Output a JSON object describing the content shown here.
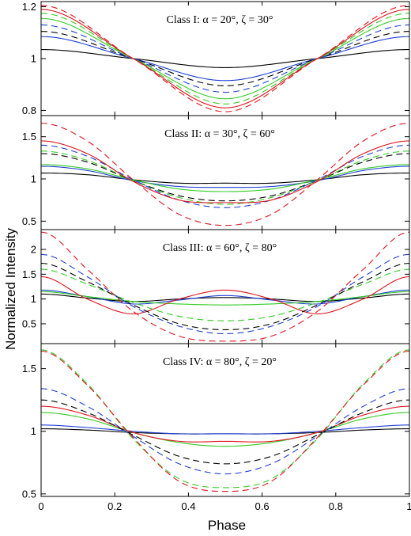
{
  "figure": {
    "xlabel": "Phase",
    "ylabel": "Normalized Intensity"
  },
  "chart_data": [
    {
      "type": "line",
      "title": "Class I: α = 20°, ζ = 30°",
      "xlim": [
        0,
        1
      ],
      "ylim": [
        0.78,
        1.22
      ],
      "xticks": [
        "0",
        "0.2",
        "0.4",
        "0.6",
        "0.8",
        "1"
      ],
      "yticks": [
        "0.8",
        "1",
        "1.2"
      ],
      "series": [
        {
          "color": "#000000",
          "dash": "solid",
          "x": [
            0,
            0.25,
            0.5,
            0.75,
            1
          ],
          "y": [
            1.035,
            1.0,
            0.965,
            1.0,
            1.035
          ]
        },
        {
          "color": "#1f3fd6",
          "dash": "solid",
          "x": [
            0,
            0.25,
            0.5,
            0.75,
            1
          ],
          "y": [
            1.085,
            1.0,
            0.915,
            1.0,
            1.085
          ]
        },
        {
          "color": "#000000",
          "dash": "dashed",
          "x": [
            0,
            0.25,
            0.5,
            0.75,
            1
          ],
          "y": [
            1.105,
            1.0,
            0.895,
            1.0,
            1.105
          ]
        },
        {
          "color": "#1f3fd6",
          "dash": "dashed",
          "x": [
            0,
            0.25,
            0.5,
            0.75,
            1
          ],
          "y": [
            1.13,
            1.0,
            0.87,
            1.0,
            1.13
          ]
        },
        {
          "color": "#33cc22",
          "dash": "solid",
          "x": [
            0,
            0.25,
            0.5,
            0.75,
            1
          ],
          "y": [
            1.155,
            1.0,
            0.845,
            1.0,
            1.155
          ]
        },
        {
          "color": "#33cc22",
          "dash": "dashed",
          "x": [
            0,
            0.25,
            0.5,
            0.75,
            1
          ],
          "y": [
            1.175,
            1.0,
            0.825,
            1.0,
            1.175
          ]
        },
        {
          "color": "#e0141e",
          "dash": "solid",
          "x": [
            0,
            0.25,
            0.5,
            0.75,
            1
          ],
          "y": [
            1.19,
            1.0,
            0.81,
            1.0,
            1.19
          ]
        },
        {
          "color": "#e0141e",
          "dash": "dashed",
          "x": [
            0,
            0.25,
            0.5,
            0.75,
            1
          ],
          "y": [
            1.205,
            1.0,
            0.795,
            1.0,
            1.205
          ]
        }
      ]
    },
    {
      "type": "line",
      "title": "Class II: α = 30°, ζ = 60°",
      "xlim": [
        0,
        1
      ],
      "ylim": [
        0.4,
        1.75
      ],
      "xticks": [
        "0",
        "0.2",
        "0.4",
        "0.6",
        "0.8",
        "1"
      ],
      "yticks": [
        "0.5",
        "1",
        "1.5"
      ],
      "series": [
        {
          "color": "#000000",
          "dash": "solid",
          "x": [
            0,
            0.125,
            0.25,
            0.375,
            0.5,
            0.625,
            0.75,
            0.875,
            1
          ],
          "y": [
            1.07,
            1.05,
            0.99,
            0.95,
            0.95,
            0.95,
            0.99,
            1.05,
            1.07
          ]
        },
        {
          "color": "#1f3fd6",
          "dash": "solid",
          "x": [
            0,
            0.125,
            0.25,
            0.375,
            0.5,
            0.625,
            0.75,
            0.875,
            1
          ],
          "y": [
            1.15,
            1.1,
            0.98,
            0.91,
            0.9,
            0.91,
            0.98,
            1.1,
            1.15
          ]
        },
        {
          "color": "#33cc22",
          "dash": "solid",
          "x": [
            0,
            0.125,
            0.25,
            0.375,
            0.5,
            0.625,
            0.75,
            0.875,
            1
          ],
          "y": [
            1.17,
            1.12,
            0.99,
            0.88,
            0.85,
            0.88,
            0.99,
            1.12,
            1.17
          ]
        },
        {
          "color": "#000000",
          "dash": "dashed",
          "x": [
            0,
            0.125,
            0.25,
            0.375,
            0.5,
            0.625,
            0.75,
            0.875,
            1
          ],
          "y": [
            1.3,
            1.2,
            0.98,
            0.8,
            0.74,
            0.8,
            0.98,
            1.2,
            1.3
          ]
        },
        {
          "color": "#33cc22",
          "dash": "dashed",
          "x": [
            0,
            0.125,
            0.25,
            0.375,
            0.5,
            0.625,
            0.75,
            0.875,
            1
          ],
          "y": [
            1.33,
            1.22,
            0.98,
            0.78,
            0.7,
            0.78,
            0.98,
            1.22,
            1.33
          ]
        },
        {
          "color": "#1f3fd6",
          "dash": "dashed",
          "x": [
            0,
            0.125,
            0.25,
            0.375,
            0.5,
            0.625,
            0.75,
            0.875,
            1
          ],
          "y": [
            1.4,
            1.27,
            0.99,
            0.75,
            0.66,
            0.75,
            0.99,
            1.27,
            1.4
          ]
        },
        {
          "color": "#e0141e",
          "dash": "solid",
          "x": [
            0,
            0.125,
            0.25,
            0.375,
            0.5,
            0.625,
            0.75,
            0.875,
            1
          ],
          "y": [
            1.45,
            1.3,
            0.97,
            0.75,
            0.72,
            0.75,
            0.97,
            1.3,
            1.45
          ]
        },
        {
          "color": "#e0141e",
          "dash": "dashed",
          "x": [
            0,
            0.125,
            0.25,
            0.375,
            0.5,
            0.625,
            0.75,
            0.875,
            1
          ],
          "y": [
            1.66,
            1.45,
            0.99,
            0.58,
            0.45,
            0.58,
            0.99,
            1.45,
            1.66
          ]
        }
      ]
    },
    {
      "type": "line",
      "title": "Class III: α = 60°, ζ = 80°",
      "xlim": [
        0,
        1
      ],
      "ylim": [
        0.1,
        2.4
      ],
      "xticks": [
        "0",
        "0.2",
        "0.4",
        "0.6",
        "0.8",
        "1"
      ],
      "yticks": [
        "0.5",
        "1",
        "1.5",
        "2"
      ],
      "series": [
        {
          "color": "#000000",
          "dash": "solid",
          "x": [
            0,
            0.125,
            0.25,
            0.375,
            0.5,
            0.625,
            0.75,
            0.875,
            1
          ],
          "y": [
            1.1,
            1.02,
            0.95,
            1.0,
            1.03,
            1.0,
            0.95,
            1.02,
            1.1
          ]
        },
        {
          "color": "#1f3fd6",
          "dash": "solid",
          "x": [
            0,
            0.125,
            0.25,
            0.375,
            0.5,
            0.625,
            0.75,
            0.875,
            1
          ],
          "y": [
            1.18,
            1.05,
            0.9,
            0.98,
            1.07,
            0.98,
            0.9,
            1.05,
            1.18
          ]
        },
        {
          "color": "#33cc22",
          "dash": "solid",
          "x": [
            0,
            0.125,
            0.25,
            0.375,
            0.5,
            0.625,
            0.75,
            0.875,
            1
          ],
          "y": [
            1.15,
            1.05,
            0.95,
            0.9,
            0.88,
            0.9,
            0.95,
            1.05,
            1.15
          ]
        },
        {
          "color": "#e0141e",
          "dash": "solid",
          "x": [
            0,
            0.125,
            0.25,
            0.375,
            0.5,
            0.625,
            0.75,
            0.875,
            1
          ],
          "y": [
            1.45,
            1.0,
            0.7,
            1.0,
            1.18,
            1.0,
            0.7,
            1.0,
            1.45
          ]
        },
        {
          "color": "#33cc22",
          "dash": "dashed",
          "x": [
            0,
            0.125,
            0.25,
            0.375,
            0.5,
            0.625,
            0.75,
            0.875,
            1
          ],
          "y": [
            1.6,
            1.3,
            0.93,
            0.65,
            0.56,
            0.65,
            0.93,
            1.3,
            1.6
          ]
        },
        {
          "color": "#000000",
          "dash": "dashed",
          "x": [
            0,
            0.125,
            0.25,
            0.375,
            0.5,
            0.625,
            0.75,
            0.875,
            1
          ],
          "y": [
            1.72,
            1.35,
            0.88,
            0.5,
            0.38,
            0.5,
            0.88,
            1.35,
            1.72
          ]
        },
        {
          "color": "#1f3fd6",
          "dash": "dashed",
          "x": [
            0,
            0.125,
            0.25,
            0.375,
            0.5,
            0.625,
            0.75,
            0.875,
            1
          ],
          "y": [
            1.9,
            1.45,
            0.85,
            0.45,
            0.3,
            0.45,
            0.85,
            1.45,
            1.9
          ]
        },
        {
          "color": "#e0141e",
          "dash": "dashed",
          "x": [
            0,
            0.125,
            0.25,
            0.375,
            0.5,
            0.625,
            0.75,
            0.875,
            1
          ],
          "y": [
            2.35,
            1.6,
            0.75,
            0.25,
            0.15,
            0.25,
            0.75,
            1.6,
            2.35
          ]
        }
      ]
    },
    {
      "type": "line",
      "title": "Class IV: α = 80°, ζ = 20°",
      "xlim": [
        0,
        1
      ],
      "ylim": [
        0.48,
        1.7
      ],
      "xticks": [
        "0",
        "0.2",
        "0.4",
        "0.6",
        "0.8",
        "1"
      ],
      "yticks": [
        "0.5",
        "1",
        "1.5"
      ],
      "series": [
        {
          "color": "#000000",
          "dash": "solid",
          "x": [
            0,
            0.125,
            0.25,
            0.375,
            0.5,
            0.625,
            0.75,
            0.875,
            1
          ],
          "y": [
            1.02,
            1.01,
            0.99,
            0.98,
            0.98,
            0.98,
            0.99,
            1.01,
            1.02
          ]
        },
        {
          "color": "#1f3fd6",
          "dash": "solid",
          "x": [
            0,
            0.125,
            0.25,
            0.375,
            0.5,
            0.625,
            0.75,
            0.875,
            1
          ],
          "y": [
            1.05,
            1.03,
            1.0,
            0.98,
            0.98,
            0.98,
            1.0,
            1.03,
            1.05
          ]
        },
        {
          "color": "#33cc22",
          "dash": "solid",
          "x": [
            0,
            0.125,
            0.25,
            0.375,
            0.5,
            0.625,
            0.75,
            0.875,
            1
          ],
          "y": [
            1.15,
            1.1,
            0.99,
            0.91,
            0.88,
            0.91,
            0.99,
            1.1,
            1.15
          ]
        },
        {
          "color": "#e0141e",
          "dash": "solid",
          "x": [
            0,
            0.125,
            0.25,
            0.375,
            0.5,
            0.625,
            0.75,
            0.875,
            1
          ],
          "y": [
            1.2,
            1.13,
            0.99,
            0.92,
            0.92,
            0.92,
            0.99,
            1.13,
            1.2
          ]
        },
        {
          "color": "#000000",
          "dash": "dashed",
          "x": [
            0,
            0.125,
            0.25,
            0.375,
            0.5,
            0.625,
            0.75,
            0.875,
            1
          ],
          "y": [
            1.25,
            1.15,
            0.97,
            0.8,
            0.74,
            0.8,
            0.97,
            1.15,
            1.25
          ]
        },
        {
          "color": "#1f3fd6",
          "dash": "dashed",
          "x": [
            0,
            0.125,
            0.25,
            0.375,
            0.5,
            0.625,
            0.75,
            0.875,
            1
          ],
          "y": [
            1.34,
            1.2,
            0.96,
            0.74,
            0.66,
            0.74,
            0.96,
            1.2,
            1.34
          ]
        },
        {
          "color": "#33cc22",
          "dash": "dashed",
          "x": [
            0,
            0.125,
            0.25,
            0.375,
            0.5,
            0.625,
            0.75,
            0.875,
            1
          ],
          "y": [
            1.65,
            1.38,
            0.94,
            0.62,
            0.55,
            0.62,
            0.94,
            1.38,
            1.65
          ]
        },
        {
          "color": "#e0141e",
          "dash": "dashed",
          "x": [
            0,
            0.125,
            0.25,
            0.375,
            0.5,
            0.625,
            0.75,
            0.875,
            1
          ],
          "y": [
            1.64,
            1.37,
            0.95,
            0.6,
            0.52,
            0.6,
            0.95,
            1.37,
            1.64
          ]
        }
      ]
    }
  ]
}
